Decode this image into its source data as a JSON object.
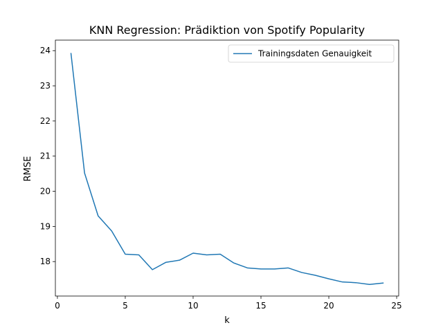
{
  "chart_data": {
    "type": "line",
    "title": "KNN Regression: Prädiktion von Spotify Popularity",
    "xlabel": "k",
    "ylabel": "RMSE",
    "xlim": [
      -0.15,
      25.15
    ],
    "ylim": [
      17.02,
      24.3
    ],
    "xticks": [
      0,
      5,
      10,
      15,
      20,
      25
    ],
    "yticks": [
      18,
      19,
      20,
      21,
      22,
      23,
      24
    ],
    "grid": false,
    "legend": "top-right",
    "series": [
      {
        "name": "Trainingsdaten Genauigkeit",
        "color": "#1f77b4",
        "x": [
          1,
          2,
          3,
          4,
          5,
          6,
          7,
          8,
          9,
          10,
          11,
          12,
          13,
          14,
          15,
          16,
          17,
          18,
          19,
          20,
          21,
          22,
          23,
          24
        ],
        "y": [
          23.92,
          20.52,
          19.3,
          18.87,
          18.21,
          18.19,
          17.77,
          17.98,
          18.04,
          18.24,
          18.19,
          18.21,
          17.96,
          17.82,
          17.79,
          17.79,
          17.82,
          17.69,
          17.61,
          17.51,
          17.42,
          17.4,
          17.35,
          17.39
        ]
      }
    ]
  }
}
